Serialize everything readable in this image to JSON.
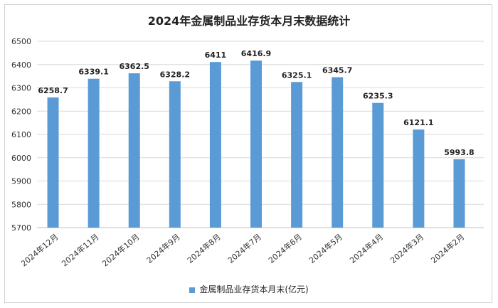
{
  "chart_data": {
    "type": "bar",
    "title": "2024年金属制品业存货本月末数据统计",
    "categories": [
      "2024年12月",
      "2024年11月",
      "2024年10月",
      "2024年9月",
      "2024年8月",
      "2024年7月",
      "2024年6月",
      "2024年5月",
      "2024年4月",
      "2024年3月",
      "2024年2月"
    ],
    "series": [
      {
        "name": "金属制品业存货本月末(亿元)",
        "values": [
          6258.7,
          6339.1,
          6362.5,
          6328.2,
          6411,
          6416.9,
          6325.1,
          6345.7,
          6235.3,
          6121.1,
          5993.8
        ]
      }
    ],
    "ylim": [
      5700,
      6500
    ],
    "yticks": [
      5700,
      5800,
      5900,
      6000,
      6100,
      6200,
      6300,
      6400,
      6500
    ],
    "grid": true,
    "legend": "bottom",
    "bar_color": "#5b9bd5"
  }
}
